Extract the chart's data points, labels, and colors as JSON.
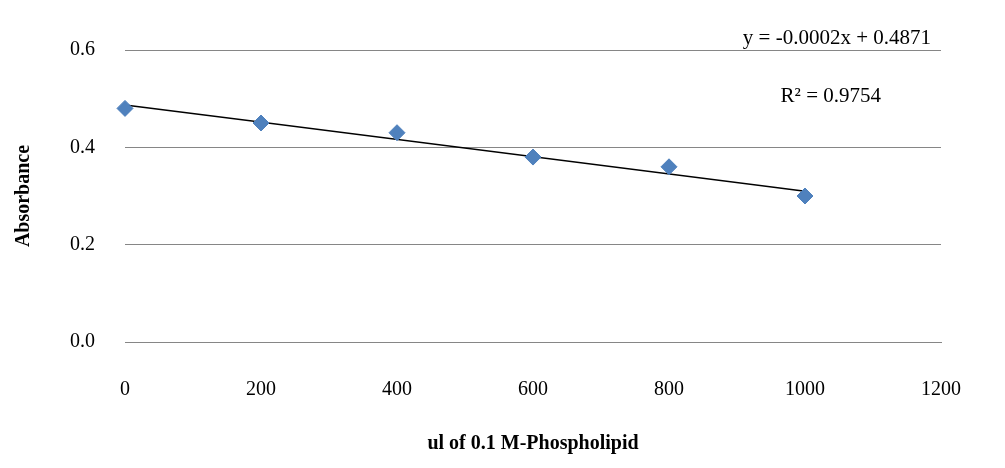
{
  "chart_data": {
    "type": "scatter",
    "xlabel": "ul of 0.1 M-Phospholipid",
    "ylabel": "Absorbance",
    "annotations": [
      "y = -0.0002x + 0.4871",
      "R² = 0.9754"
    ],
    "series": [
      {
        "type": "scatter",
        "color": "#4f81bd",
        "marker": "diamond",
        "x": [
          0,
          200,
          400,
          600,
          800,
          1000
        ],
        "values": [
          0.48,
          0.45,
          0.43,
          0.38,
          0.36,
          0.3
        ]
      },
      {
        "type": "line",
        "color": "#000000",
        "marker": "none",
        "x": [
          0,
          1000
        ],
        "values": [
          0.487,
          0.31
        ]
      }
    ],
    "xlim": [
      0,
      1200
    ],
    "xticks": [
      0,
      200,
      400,
      600,
      800,
      1000,
      1200
    ],
    "ylim": [
      0,
      0.6
    ],
    "yticks": [
      {
        "value": 0,
        "label": "0.0"
      },
      0.2,
      0.4,
      0.6
    ],
    "grid": "y"
  }
}
